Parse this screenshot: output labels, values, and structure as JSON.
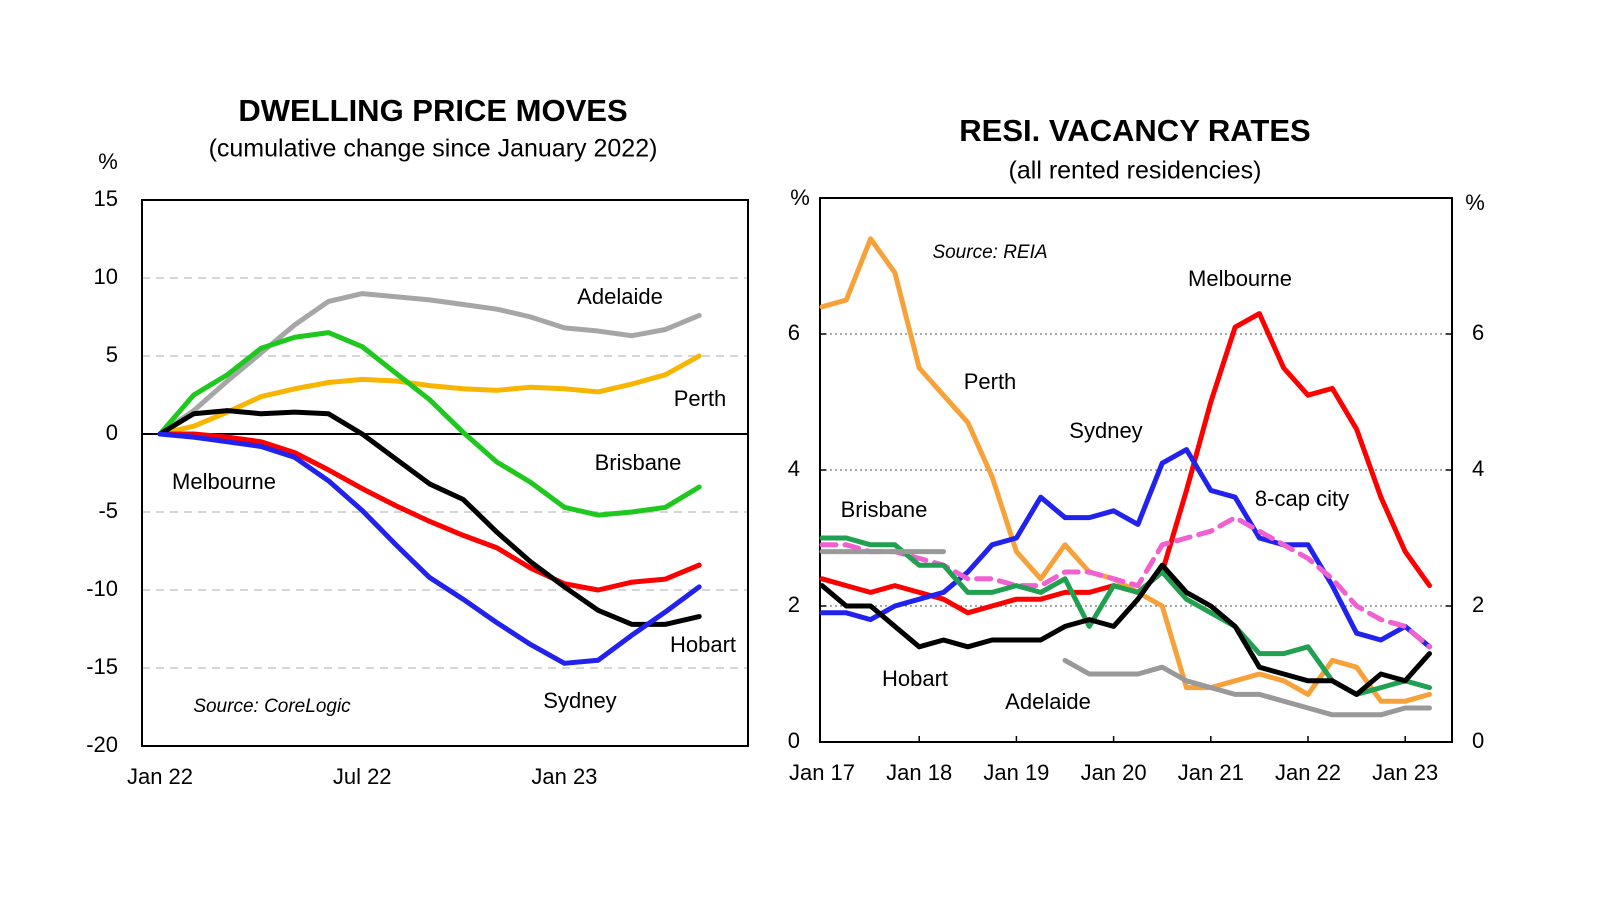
{
  "chart_data": [
    {
      "type": "line",
      "title": "DWELLING  PRICE MOVES",
      "subtitle": "(cumulative change since January 2022)",
      "y_label": "%",
      "annotation": "Source:  CoreLogic",
      "categories": [
        "Jan 22",
        null,
        null,
        null,
        null,
        null,
        "Jul 22",
        null,
        null,
        null,
        null,
        null,
        "Jan 23",
        null,
        null,
        null,
        null
      ],
      "ylim": [
        -20,
        15
      ],
      "yticks": [
        15,
        10,
        5,
        0,
        -5,
        -10,
        -15,
        -20
      ],
      "grid": true,
      "series": [
        {
          "name": "Adelaide",
          "color": "#a6a6a6",
          "values": [
            0,
            1.5,
            3.4,
            5.2,
            7.0,
            8.5,
            9.0,
            8.8,
            8.6,
            8.3,
            8.0,
            7.5,
            6.8,
            6.6,
            6.3,
            6.7,
            7.6
          ]
        },
        {
          "name": "Perth",
          "color": "#f7b500",
          "values": [
            0,
            0.5,
            1.4,
            2.4,
            2.9,
            3.3,
            3.5,
            3.4,
            3.1,
            2.9,
            2.8,
            3.0,
            2.9,
            2.7,
            3.2,
            3.8,
            5.0
          ]
        },
        {
          "name": "Brisbane",
          "color": "#1ec81e",
          "values": [
            0,
            2.5,
            3.8,
            5.5,
            6.2,
            6.5,
            5.6,
            3.9,
            2.2,
            0.1,
            -1.8,
            -3.1,
            -4.7,
            -5.2,
            -5.0,
            -4.7,
            -3.4
          ]
        },
        {
          "name": "Melbourne",
          "color": "#ff0000",
          "values": [
            0,
            0,
            -0.2,
            -0.5,
            -1.2,
            -2.3,
            -3.5,
            -4.6,
            -5.6,
            -6.5,
            -7.3,
            -8.6,
            -9.6,
            -10.0,
            -9.5,
            -9.3,
            -8.4
          ]
        },
        {
          "name": "Hobart",
          "color": "#000000",
          "values": [
            0,
            1.3,
            1.5,
            1.3,
            1.4,
            1.3,
            0.0,
            -1.6,
            -3.2,
            -4.2,
            -6.3,
            -8.2,
            -9.8,
            -11.3,
            -12.2,
            -12.2,
            -11.7
          ]
        },
        {
          "name": "Sydney",
          "color": "#2222ee",
          "values": [
            0,
            -0.2,
            -0.5,
            -0.8,
            -1.5,
            -3.0,
            -4.9,
            -7.1,
            -9.2,
            -10.6,
            -12.1,
            -13.5,
            -14.7,
            -14.5,
            -12.9,
            -11.4,
            -9.8
          ]
        }
      ]
    },
    {
      "type": "line",
      "title": "RESI. VACANCY RATES",
      "subtitle": "(all rented residencies)",
      "y_label": "%",
      "y2_label": "%",
      "annotation": "Source: REIA",
      "categories": [
        "Jan 17",
        null,
        null,
        null,
        "Jan 18",
        null,
        null,
        null,
        "Jan 19",
        null,
        null,
        null,
        "Jan 20",
        null,
        null,
        null,
        "Jan 21",
        null,
        null,
        null,
        "Jan 22",
        null,
        null,
        null,
        "Jan 23",
        null
      ],
      "ylim": [
        0,
        8
      ],
      "yticks": [
        0,
        2,
        4,
        6
      ],
      "y2lim": [
        0,
        8
      ],
      "y2ticks": [
        0,
        2,
        4,
        6
      ],
      "grid": true,
      "series": [
        {
          "name": "Melbourne",
          "color": "#ff0000",
          "values": [
            2.4,
            2.3,
            2.2,
            2.3,
            2.2,
            2.1,
            1.9,
            2.0,
            2.1,
            2.1,
            2.2,
            2.2,
            2.3,
            2.2,
            2.5,
            3.7,
            5.0,
            6.1,
            6.3,
            5.5,
            5.1,
            5.2,
            4.6,
            3.6,
            2.8,
            2.3
          ]
        },
        {
          "name": "Perth",
          "color": "#f7a13a",
          "values": [
            6.4,
            6.5,
            7.4,
            6.9,
            5.5,
            5.1,
            4.7,
            3.9,
            2.8,
            2.4,
            2.9,
            2.5,
            2.4,
            2.2,
            2.0,
            0.8,
            0.8,
            0.9,
            1.0,
            0.9,
            0.7,
            1.2,
            1.1,
            0.6,
            0.6,
            0.7
          ]
        },
        {
          "name": "Sydney",
          "color": "#2222ee",
          "values": [
            1.9,
            1.9,
            1.8,
            2.0,
            2.1,
            2.2,
            2.5,
            2.9,
            3.0,
            3.6,
            3.3,
            3.3,
            3.4,
            3.2,
            4.1,
            4.3,
            3.7,
            3.6,
            3.0,
            2.9,
            2.9,
            2.3,
            1.6,
            1.5,
            1.7,
            1.4
          ]
        },
        {
          "name": "8-cap city",
          "color": "#f060d0",
          "dashed": true,
          "values": [
            2.9,
            2.9,
            2.8,
            2.8,
            2.7,
            2.6,
            2.4,
            2.4,
            2.3,
            2.3,
            2.5,
            2.5,
            2.4,
            2.3,
            2.9,
            3.0,
            3.1,
            3.3,
            3.1,
            2.9,
            2.7,
            2.4,
            2.0,
            1.8,
            1.7,
            1.4
          ]
        },
        {
          "name": "Brisbane",
          "color": "#20a050",
          "values": [
            3.0,
            3.0,
            2.9,
            2.9,
            2.6,
            2.6,
            2.2,
            2.2,
            2.3,
            2.2,
            2.4,
            1.7,
            2.3,
            2.2,
            2.5,
            2.1,
            1.9,
            1.7,
            1.3,
            1.3,
            1.4,
            0.9,
            0.7,
            0.8,
            0.9,
            0.8
          ]
        },
        {
          "name": "Hobart",
          "color": "#000000",
          "values": [
            2.3,
            2.0,
            2.0,
            1.7,
            1.4,
            1.5,
            1.4,
            1.5,
            1.5,
            1.5,
            1.7,
            1.8,
            1.7,
            2.1,
            2.6,
            2.2,
            2.0,
            1.7,
            1.1,
            1.0,
            0.9,
            0.9,
            0.7,
            1.0,
            0.9,
            1.3
          ]
        },
        {
          "name": "Adelaide",
          "color": "#999999",
          "values": [
            2.8,
            2.8,
            2.8,
            2.8,
            2.8,
            2.8,
            null,
            null,
            null,
            null,
            1.2,
            1.0,
            1.0,
            1.0,
            1.1,
            0.9,
            0.8,
            0.7,
            0.7,
            0.6,
            0.5,
            0.4,
            0.4,
            0.4,
            0.5,
            0.5
          ]
        }
      ]
    }
  ]
}
